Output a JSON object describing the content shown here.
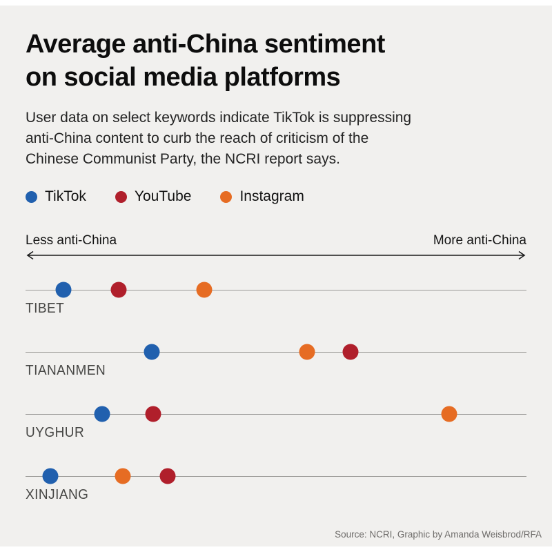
{
  "header": {
    "title": "Average anti-China sentiment\non social media platforms",
    "subtitle": "User data on select keywords indicate TikTok is suppressing\nanti-China content to curb the reach of criticism of the\nChinese Communist Party, the NCRI report says."
  },
  "legend": {
    "items": [
      {
        "label": "TikTok",
        "color": "#2160ae"
      },
      {
        "label": "YouTube",
        "color": "#b01f2b"
      },
      {
        "label": "Instagram",
        "color": "#e66c23"
      }
    ]
  },
  "axis": {
    "left_label": "Less anti-China",
    "right_label": "More anti-China"
  },
  "chart_data": {
    "type": "scatter",
    "subtype": "horizontal-dot-plot",
    "title": "Average anti-China sentiment on social media platforms",
    "xlabel_left": "Less anti-China",
    "xlabel_right": "More anti-China",
    "x_range": [
      0,
      100
    ],
    "x_unit": "relative sentiment position, percent of axis length (no numeric ticks shown)",
    "grid": "one horizontal baseline per category",
    "legend_position": "top-left",
    "categories": [
      "TIBET",
      "TIANANMEN",
      "UYGHUR",
      "XINJIANG"
    ],
    "series": [
      {
        "name": "TikTok",
        "color": "#2160ae",
        "values": [
          7.6,
          25.2,
          15.3,
          5.0
        ]
      },
      {
        "name": "YouTube",
        "color": "#b01f2b",
        "values": [
          18.6,
          64.9,
          25.5,
          28.4
        ]
      },
      {
        "name": "Instagram",
        "color": "#e66c23",
        "values": [
          35.7,
          56.2,
          84.6,
          19.4
        ]
      }
    ]
  },
  "footer": {
    "source": "Source: NCRI, Graphic by Amanda Weisbrod/RFA"
  },
  "colors": {
    "background": "#f1f0ee",
    "row_line": "#9b9a97",
    "arrow": "#1a1a1a",
    "category_label": "#474745",
    "footer_text": "#6e6c6a"
  }
}
